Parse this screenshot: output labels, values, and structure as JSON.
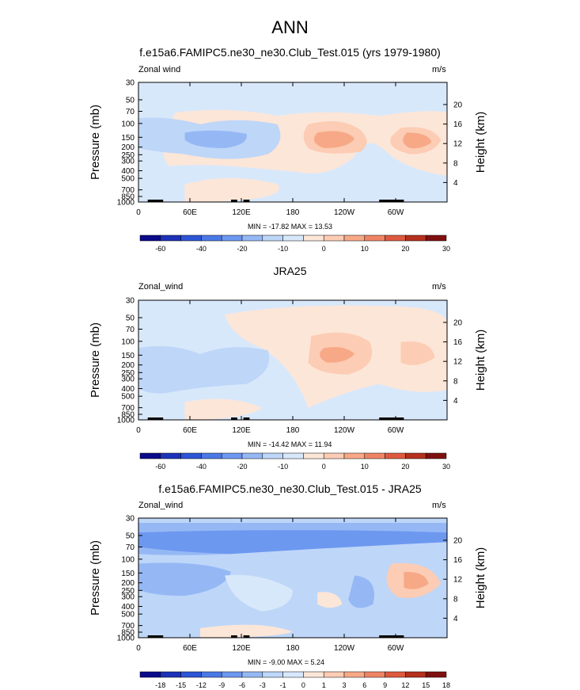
{
  "title": "ANN",
  "colors": {
    "ramp1": [
      "#0a0a8a",
      "#1c32b8",
      "#2e55d6",
      "#4a79e6",
      "#6d98f0",
      "#95b8f5",
      "#bed6f8",
      "#d8e8fb",
      "#fce6d8",
      "#fcccb4",
      "#f7a987",
      "#ef8465",
      "#dd5a3f",
      "#b5301d",
      "#801010"
    ],
    "ramp2": [
      "#0a0a8a",
      "#1c32b8",
      "#2e55d6",
      "#4a79e6",
      "#6d98f0",
      "#95b8f5",
      "#bed6f8",
      "#d8e8fb",
      "#fce6d8",
      "#fcccb4",
      "#f7a987",
      "#ef8465",
      "#dd5a3f",
      "#b5301d",
      "#801010"
    ]
  },
  "chart_data": [
    {
      "type": "heatmap",
      "title": "f.e15a6.FAMIPC5.ne30_ne30.Club_Test.015 (yrs 1979-1980)",
      "variable_label": "Zonal wind",
      "units": "m/s",
      "ylabel": "Pressure (mb)",
      "y2label": "Height (km)",
      "stats": "MIN = -17.82  MAX = 13.53",
      "xticks": [
        "0",
        "60E",
        "120E",
        "180",
        "120W",
        "60W"
      ],
      "yticks": [
        "30",
        "50",
        "70",
        "100",
        "150",
        "200",
        "250",
        "300",
        "400",
        "500",
        "700",
        "850",
        "1000"
      ],
      "y2ticks": [
        "20",
        "16",
        "12",
        "8",
        "4"
      ],
      "colorbar_levels": [
        "-60",
        "-40",
        "-20",
        "-10",
        "0",
        "10",
        "20",
        "30"
      ],
      "regions": [
        {
          "x": [
            0,
            365
          ],
          "y": [
            0,
            1
          ],
          "level": 7
        },
        {
          "x": [
            275,
            357
          ],
          "y": [
            0.42,
            0.62
          ],
          "level": 9
        },
        {
          "x": [
            35,
            115
          ],
          "y": [
            0.55,
            0.65
          ],
          "level": 6
        }
      ]
    },
    {
      "type": "heatmap",
      "title": "JRA25",
      "variable_label": "Zonal_wind",
      "units": "m/s",
      "ylabel": "Pressure (mb)",
      "y2label": "Height (km)",
      "stats": "MIN = -14.42  MAX = 11.94",
      "xticks": [
        "0",
        "60E",
        "120E",
        "180",
        "120W",
        "60W"
      ],
      "yticks": [
        "30",
        "50",
        "70",
        "100",
        "150",
        "200",
        "250",
        "300",
        "400",
        "500",
        "700",
        "850",
        "1000"
      ],
      "y2ticks": [
        "20",
        "16",
        "12",
        "8",
        "4"
      ],
      "colorbar_levels": [
        "-60",
        "-40",
        "-20",
        "-10",
        "0",
        "10",
        "20",
        "30"
      ],
      "regions": [
        {
          "x": [
            0,
            365
          ],
          "y": [
            0,
            1
          ],
          "level": 7
        },
        {
          "x": [
            240,
            272
          ],
          "y": [
            0.52,
            0.62
          ],
          "level": 10
        }
      ]
    },
    {
      "type": "heatmap",
      "title": "f.e15a6.FAMIPC5.ne30_ne30.Club_Test.015 - JRA25",
      "variable_label": "Zonal_wind",
      "units": "m/s",
      "ylabel": "Pressure (mb)",
      "y2label": "Height (km)",
      "stats": "MIN =  -9.00  MAX =   5.24",
      "xticks": [
        "0",
        "60E",
        "120E",
        "180",
        "120W",
        "60W"
      ],
      "yticks": [
        "30",
        "50",
        "70",
        "100",
        "150",
        "200",
        "250",
        "300",
        "400",
        "500",
        "700",
        "850",
        "1000"
      ],
      "y2ticks": [
        "20",
        "16",
        "12",
        "8",
        "4"
      ],
      "colorbar_levels": [
        "-18",
        "-15",
        "-12",
        "-9",
        "-6",
        "-3",
        "-1",
        "0",
        "1",
        "3",
        "6",
        "9",
        "12",
        "15",
        "18"
      ],
      "regions": [
        {
          "x": [
            0,
            365
          ],
          "y": [
            0,
            1
          ],
          "level": 6
        },
        {
          "x": [
            0,
            365
          ],
          "y": [
            0.1,
            0.3
          ],
          "level": 4
        },
        {
          "x": [
            305,
            360
          ],
          "y": [
            0.45,
            0.75
          ],
          "level": 9
        }
      ]
    }
  ]
}
